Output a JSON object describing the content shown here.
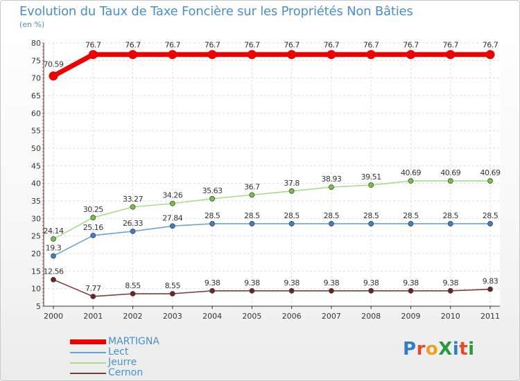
{
  "title": "Evolution du Taux de Taxe Foncière sur les Propriétés Non Bâties",
  "unit": "(en %)",
  "logo": {
    "text": "ProXiti",
    "colors": [
      "#2e7fc6",
      "#e24b2a",
      "#f0a020",
      "#2b9a3f",
      "#2e7fc6",
      "#e24b2a",
      "#2b9a3f"
    ]
  },
  "chart_data": {
    "type": "line",
    "title": "Evolution du Taux de Taxe Foncière sur les Propriétés Non Bâties",
    "ylabel": "(en %)",
    "xlabel": "",
    "ylim": [
      5,
      80
    ],
    "yticks": [
      "5",
      "10",
      "15",
      "20",
      "25",
      "30",
      "35",
      "40",
      "45",
      "50",
      "55",
      "60",
      "65",
      "70",
      "75",
      "80"
    ],
    "categories": [
      "2000",
      "2001",
      "2002",
      "2003",
      "2004",
      "2005",
      "2006",
      "2007",
      "2008",
      "2009",
      "2010",
      "2011"
    ],
    "grid": true,
    "series": [
      {
        "name": "MARTIGNA",
        "color": "#ee0000",
        "point": "#ee0000",
        "values": [
          70.59,
          76.7,
          76.7,
          76.7,
          76.7,
          76.7,
          76.7,
          76.7,
          76.7,
          76.7,
          76.7,
          76.7
        ],
        "labels": [
          "70.59",
          "76.7",
          "76.7",
          "76.7",
          "76.7",
          "76.7",
          "76.7",
          "76.7",
          "76.7",
          "76.7",
          "76.7",
          "76.7"
        ]
      },
      {
        "name": "Lect",
        "color": "#6aa3d5",
        "point": "#3a82c4",
        "values": [
          19.3,
          25.16,
          26.33,
          27.84,
          28.5,
          28.5,
          28.5,
          28.5,
          28.5,
          28.5,
          28.5,
          28.5
        ],
        "labels": [
          "19.3",
          "25.16",
          "26.33",
          "27.84",
          "28.5",
          "28.5",
          "28.5",
          "28.5",
          "28.5",
          "28.5",
          "28.5",
          "28.5"
        ]
      },
      {
        "name": "Jeurre",
        "color": "#a8dc8a",
        "point": "#74c442",
        "values": [
          24.14,
          30.25,
          33.27,
          34.26,
          35.63,
          36.7,
          37.8,
          38.93,
          39.51,
          40.69,
          40.69,
          40.69
        ],
        "labels": [
          "24.14",
          "30.25",
          "33.27",
          "34.26",
          "35.63",
          "36.7",
          "37.8",
          "38.93",
          "39.51",
          "40.69",
          "40.69",
          "40.69"
        ]
      },
      {
        "name": "Cernon",
        "color": "#7a3a3a",
        "point": "#6b2424",
        "values": [
          12.56,
          7.77,
          8.55,
          8.55,
          9.38,
          9.38,
          9.38,
          9.38,
          9.38,
          9.38,
          9.38,
          9.83
        ],
        "labels": [
          "12.56",
          "7.77",
          "8.55",
          "8.55",
          "9.38",
          "9.38",
          "9.38",
          "9.38",
          "9.38",
          "9.38",
          "9.38",
          "9.83"
        ]
      }
    ]
  }
}
